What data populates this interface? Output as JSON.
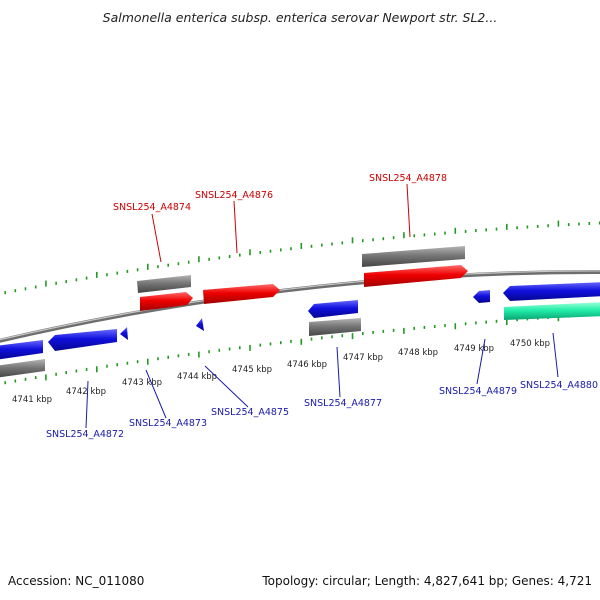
{
  "title": "Salmonella enterica subsp. enterica serovar Newport str. SL2...",
  "footer": {
    "accession": "Accession: NC_011080",
    "stats": "Topology: circular; Length: 4,827,641 bp; Genes: 4,721"
  },
  "colors": {
    "forward_gene": "#ee0000",
    "reverse_gene": "#1010dd",
    "rna_gene": "#22eeaa",
    "gray_feature": "#777777",
    "ticks": "#229922",
    "backbone": "#888888",
    "forward_label": "#cc0000",
    "reverse_label": "#1a1aaa"
  },
  "scale": {
    "unit": "kbp",
    "ticks": [
      {
        "kbp": 4741,
        "label": "4741 kbp"
      },
      {
        "kbp": 4742,
        "label": "4742 kbp"
      },
      {
        "kbp": 4743,
        "label": "4743 kbp"
      },
      {
        "kbp": 4744,
        "label": "4744 kbp"
      },
      {
        "kbp": 4745,
        "label": "4745 kbp"
      },
      {
        "kbp": 4746,
        "label": "4746 kbp"
      },
      {
        "kbp": 4747,
        "label": "4747 kbp"
      },
      {
        "kbp": 4748,
        "label": "4748 kbp"
      },
      {
        "kbp": 4749,
        "label": "4749 kbp"
      },
      {
        "kbp": 4750,
        "label": "4750 kbp"
      }
    ]
  },
  "gene_labels": {
    "forward": [
      "SNSL254_A4874",
      "SNSL254_A4876",
      "SNSL254_A4878"
    ],
    "reverse": [
      "SNSL254_A4872",
      "SNSL254_A4873",
      "SNSL254_A4875",
      "SNSL254_A4877",
      "SNSL254_A4879",
      "SNSL254_A4880"
    ]
  }
}
